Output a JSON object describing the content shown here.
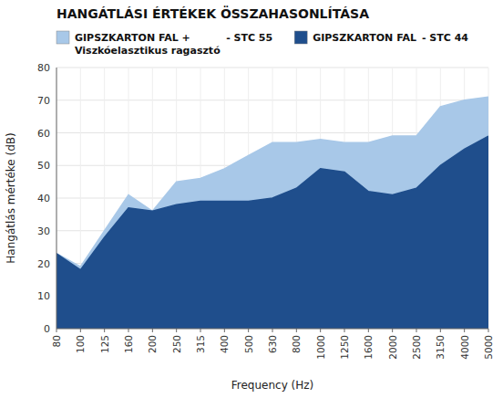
{
  "chart_data": {
    "type": "area",
    "title": "HANGÁTLÁSI ÉRTÉKEK ÖSSZAHASONLÍTÁSA",
    "x_label": "Frequency (Hz)",
    "y_label": "Hangátlás mértéke (dB)",
    "categories": [
      "80",
      "100",
      "125",
      "160",
      "200",
      "250",
      "315",
      "400",
      "500",
      "630",
      "800",
      "1000",
      "1250",
      "1600",
      "2000",
      "2500",
      "3150",
      "4000",
      "5000"
    ],
    "series": [
      {
        "name": "GIPSZKARTON FAL +\nViszkóelasztikus ragasztó",
        "color": "#a8c8e8",
        "values": [
          23,
          19,
          30,
          41,
          36,
          45,
          46,
          49,
          53,
          57,
          57,
          58,
          57,
          57,
          59,
          59,
          68,
          70,
          71
        ]
      },
      {
        "name": "GIPSZKARTON FAL",
        "color": "#1f4e8c",
        "values": [
          23,
          18,
          28,
          37,
          36,
          38,
          39,
          39,
          39,
          40,
          43,
          49,
          48,
          42,
          41,
          43,
          50,
          55,
          59
        ]
      }
    ],
    "annotations": [
      "- STC 55",
      "- STC 44"
    ],
    "ylim": [
      0,
      80
    ],
    "yticks": [
      0,
      10,
      20,
      30,
      40,
      50,
      60,
      70,
      80
    ],
    "grid": true,
    "legend": "top"
  }
}
